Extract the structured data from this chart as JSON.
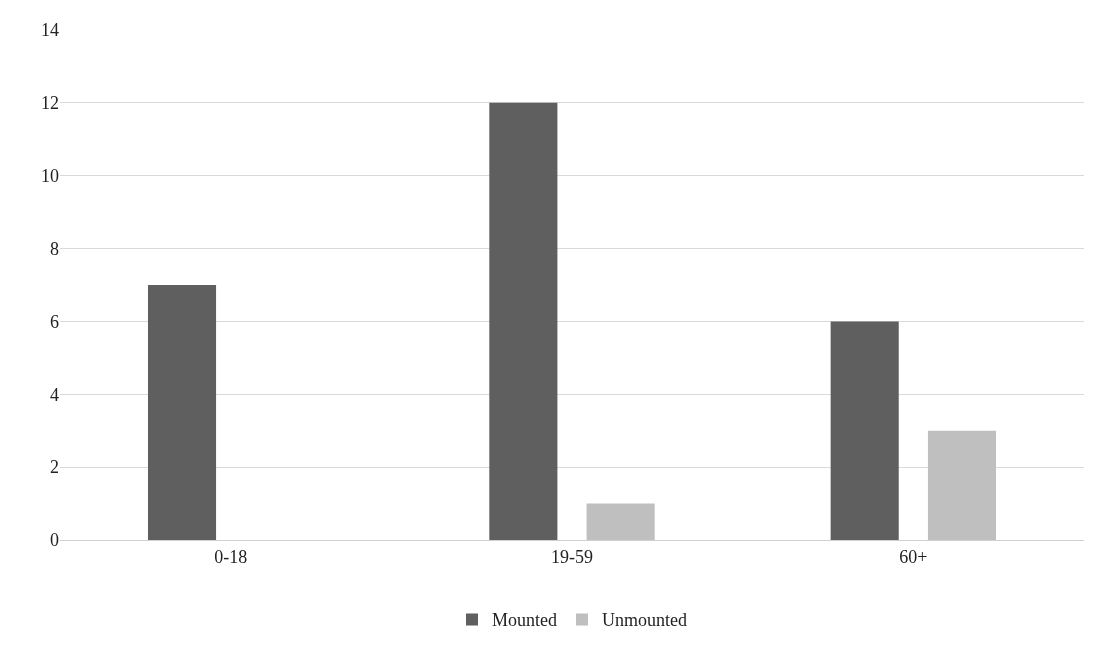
{
  "chart_data": {
    "type": "bar",
    "categories": [
      "0-18",
      "19-59",
      "60+"
    ],
    "series": [
      {
        "name": "Mounted",
        "color": "#5f5f5f",
        "values": [
          7,
          12,
          6
        ]
      },
      {
        "name": "Unmounted",
        "color": "#bfbfbf",
        "values": [
          0,
          1,
          3
        ]
      }
    ],
    "ylim": [
      0,
      14
    ],
    "yticks": [
      0,
      2,
      4,
      6,
      8,
      10,
      12,
      14
    ],
    "grid": "y",
    "legend": "bottom"
  }
}
